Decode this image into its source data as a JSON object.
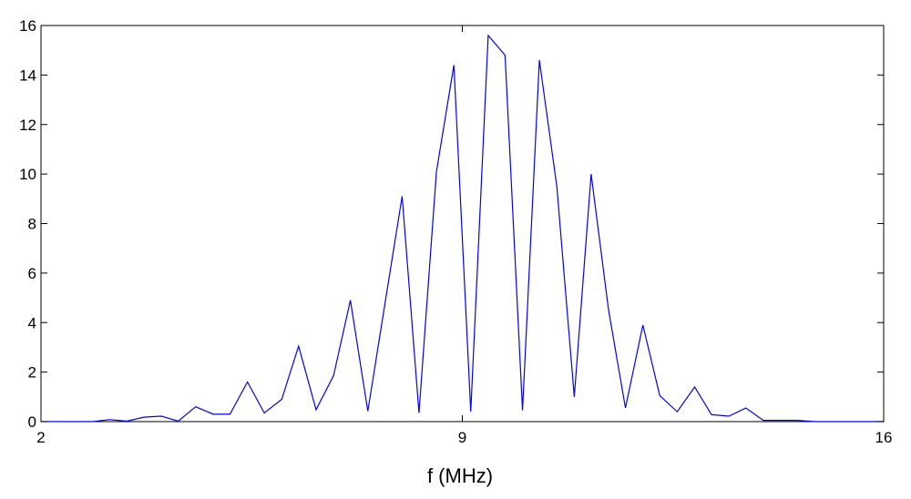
{
  "chart_data": {
    "type": "line",
    "title": "",
    "xlabel": "f (MHz)",
    "ylabel": "",
    "xlim": [
      2,
      16
    ],
    "ylim": [
      0,
      16
    ],
    "x_ticks": [
      2,
      9,
      16
    ],
    "y_ticks": [
      0,
      2,
      4,
      6,
      8,
      10,
      12,
      14,
      16
    ],
    "grid": false,
    "legend": "none",
    "line_color": "#0000ff",
    "series": [
      {
        "x": [
          2.0,
          2.28,
          2.57,
          2.86,
          3.14,
          3.43,
          3.71,
          4.0,
          4.28,
          4.57,
          4.86,
          5.14,
          5.43,
          5.71,
          6.0,
          6.28,
          6.57,
          6.86,
          7.14,
          7.43,
          7.71,
          8.0,
          8.28,
          8.57,
          8.86,
          9.14,
          9.43,
          9.71,
          10.0,
          10.28,
          10.57,
          10.86,
          11.14,
          11.43,
          11.71,
          12.0,
          12.28,
          12.57,
          12.86,
          13.14,
          13.43,
          13.71,
          14.0,
          14.28,
          14.57,
          14.86,
          15.14,
          15.43,
          15.71,
          16.0
        ],
        "y": [
          0,
          0,
          0,
          0,
          0.08,
          0.02,
          0.18,
          0.22,
          0.02,
          0.6,
          0.3,
          0.3,
          1.6,
          0.35,
          0.9,
          3.05,
          0.48,
          1.85,
          4.9,
          0.42,
          4.7,
          9.1,
          0.35,
          10.1,
          14.4,
          0.4,
          15.6,
          14.8,
          0.45,
          14.6,
          9.5,
          1.0,
          10.0,
          4.5,
          0.55,
          3.9,
          1.05,
          0.4,
          1.4,
          0.28,
          0.22,
          0.55,
          0.05,
          0.05,
          0.05,
          0,
          0,
          0,
          0,
          0
        ]
      }
    ]
  }
}
